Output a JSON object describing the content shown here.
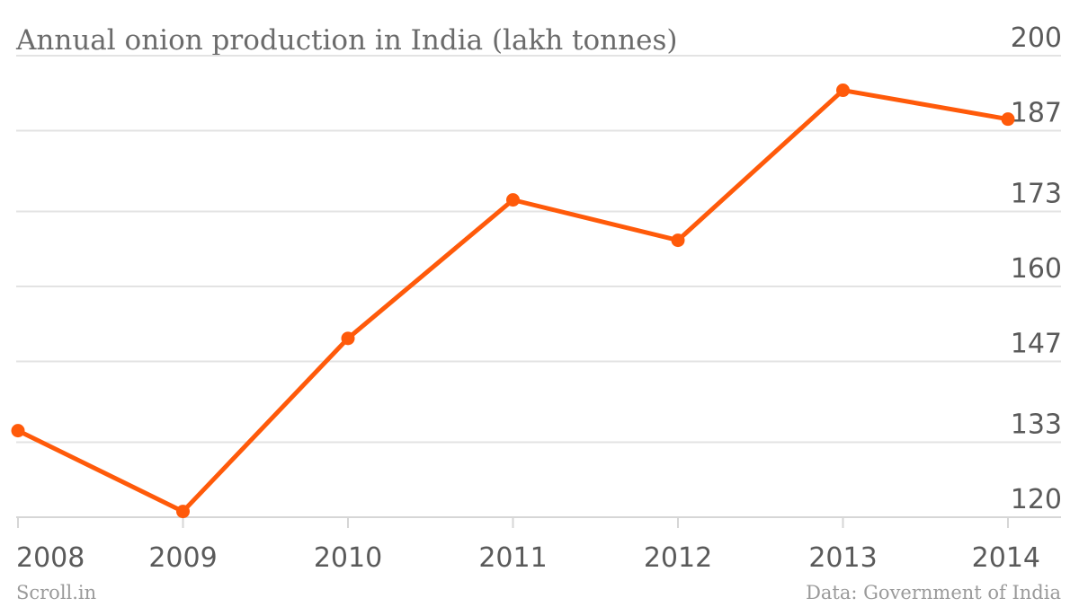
{
  "chart_data": {
    "type": "line",
    "title": "Annual onion production in India (lakh tonnes)",
    "xlabel": "",
    "ylabel": "",
    "categories": [
      "2008",
      "2009",
      "2010",
      "2011",
      "2012",
      "2013",
      "2014"
    ],
    "series": [
      {
        "values": [
          135,
          121,
          151,
          175,
          168,
          194,
          189
        ]
      }
    ],
    "yticks": [
      "120",
      "133",
      "147",
      "160",
      "173",
      "187",
      "200"
    ],
    "ylim": [
      120,
      200
    ],
    "grid": true,
    "legend": "none",
    "line_color": "#ff5a0a",
    "source": "Data: Government of India",
    "brand": "Scroll.in"
  }
}
